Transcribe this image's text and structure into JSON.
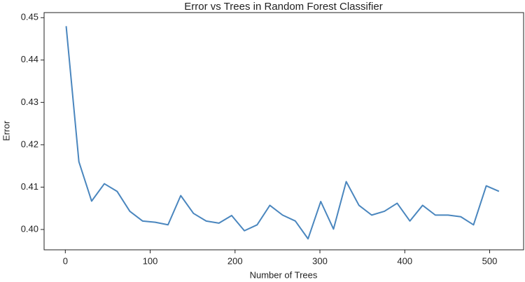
{
  "chart_data": {
    "type": "line",
    "title": "Error vs Trees in Random Forest Classifier",
    "x_label": "Number of Trees",
    "y_label": "Error",
    "x": [
      1,
      16,
      31,
      46,
      61,
      76,
      91,
      106,
      121,
      136,
      151,
      166,
      181,
      196,
      211,
      226,
      241,
      256,
      271,
      286,
      301,
      316,
      331,
      346,
      361,
      376,
      391,
      406,
      421,
      436,
      451,
      466,
      481,
      496,
      511
    ],
    "series": [
      {
        "name": "Error",
        "color": "#4a86be",
        "values": [
          0.448,
          0.416,
          0.4067,
          0.4108,
          0.409,
          0.4043,
          0.402,
          0.4017,
          0.4011,
          0.408,
          0.4038,
          0.402,
          0.4015,
          0.4033,
          0.3997,
          0.4011,
          0.4057,
          0.4034,
          0.402,
          0.3978,
          0.4066,
          0.4001,
          0.4113,
          0.4057,
          0.4034,
          0.4043,
          0.4062,
          0.402,
          0.4057,
          0.4034,
          0.4034,
          0.403,
          0.4011,
          0.4103,
          0.409
        ]
      }
    ],
    "xlim": [
      -25,
      540
    ],
    "xticks": [
      0,
      100,
      200,
      300,
      400,
      500
    ],
    "ylim": [
      0.3952,
      0.4512
    ],
    "yticks": [
      {
        "value": 0.4,
        "label": "0.40"
      },
      0.41,
      0.42,
      0.43,
      0.44,
      0.45
    ],
    "grid": false
  }
}
